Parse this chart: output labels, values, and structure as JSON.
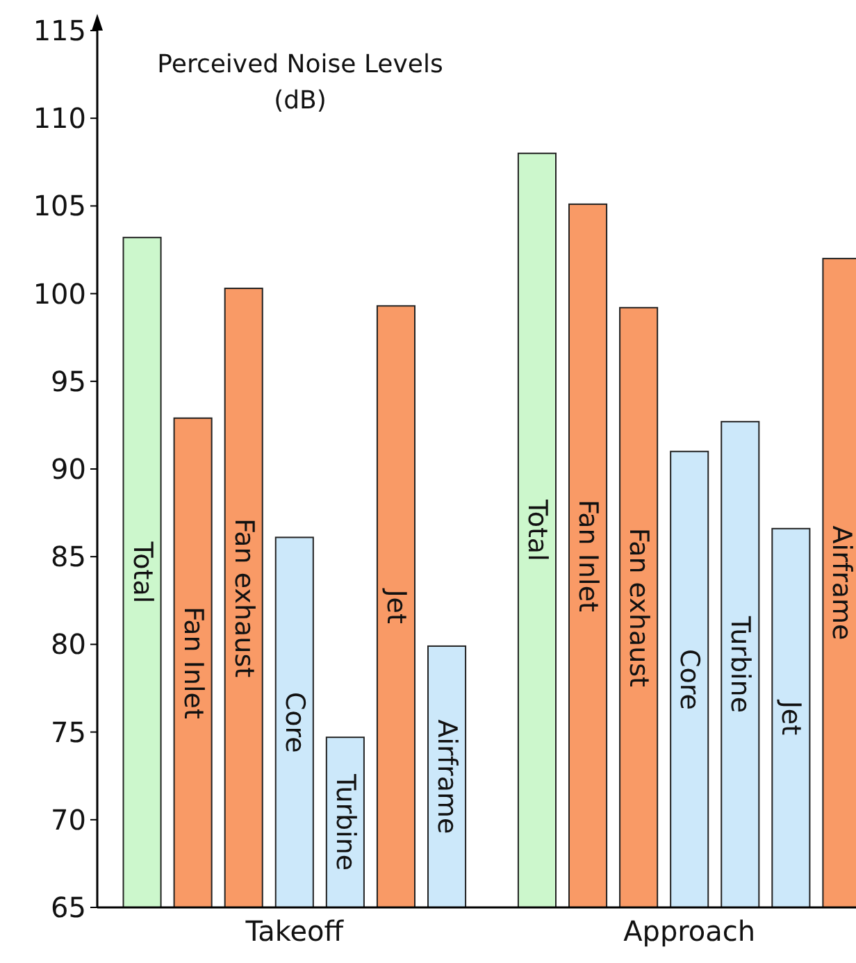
{
  "chart_data": {
    "type": "bar",
    "title": "Perceived Noise Levels",
    "subtitle": "(dB)",
    "categories": [
      "Takeoff",
      "Approach"
    ],
    "series": [
      {
        "name": "Total",
        "colors": [
          "#ccf7cc",
          "#ccf7cc"
        ],
        "values": [
          103.2,
          108.0
        ]
      },
      {
        "name": "Fan Inlet",
        "colors": [
          "#f99a66",
          "#f99a66"
        ],
        "values": [
          92.9,
          105.1
        ]
      },
      {
        "name": "Fan exhaust",
        "colors": [
          "#f99a66",
          "#f99a66"
        ],
        "values": [
          100.3,
          99.2
        ]
      },
      {
        "name": "Core",
        "colors": [
          "#cce8fa",
          "#cce8fa"
        ],
        "values": [
          86.1,
          91.0
        ]
      },
      {
        "name": "Turbine",
        "colors": [
          "#cce8fa",
          "#cce8fa"
        ],
        "values": [
          74.7,
          92.7
        ]
      },
      {
        "name": "Jet",
        "colors": [
          "#f99a66",
          "#cce8fa"
        ],
        "values": [
          99.3,
          86.6
        ]
      },
      {
        "name": "Airframe",
        "colors": [
          "#cce8fa",
          "#f99a66"
        ],
        "values": [
          79.9,
          102.0
        ]
      }
    ],
    "ylim": [
      65,
      115
    ],
    "yticks": [
      65,
      70,
      75,
      80,
      85,
      90,
      95,
      100,
      105,
      110,
      115
    ],
    "grid": false
  }
}
